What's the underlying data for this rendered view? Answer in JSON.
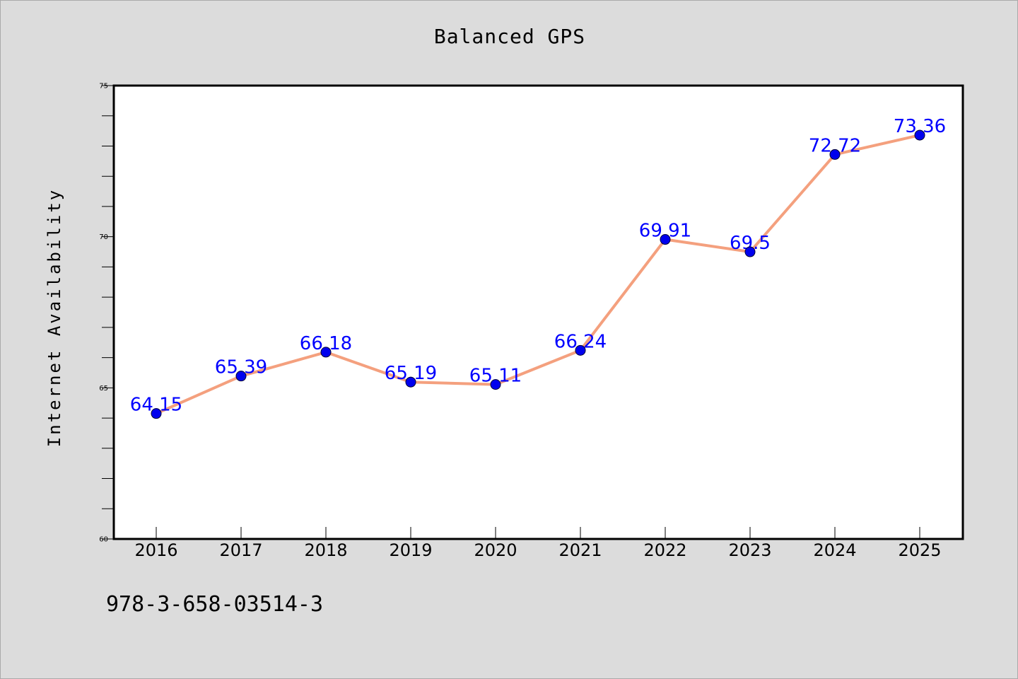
{
  "title": "Balanced GPS",
  "footer_text": "978-3-658-03514-3",
  "chart_data": {
    "type": "line",
    "title": "Balanced GPS",
    "xlabel": "",
    "ylabel": "Internet Availability",
    "categories": [
      "2016",
      "2017",
      "2018",
      "2019",
      "2020",
      "2021",
      "2022",
      "2023",
      "2024",
      "2025"
    ],
    "series": [
      {
        "values": [
          64.15,
          65.39,
          66.18,
          65.19,
          65.11,
          66.24,
          69.91,
          69.5,
          72.72,
          73.36
        ],
        "data_labels": [
          "64.15",
          "65.39",
          "66.18",
          "65.19",
          "65.11",
          "66.24",
          "69.91",
          "69.5",
          "72.72",
          "73.36"
        ]
      }
    ],
    "ylim": [
      60,
      75
    ],
    "yticks": [
      "60",
      "65",
      "70",
      "75"
    ],
    "grid": false,
    "legend": "none",
    "colors": {
      "line": "#f4a07e",
      "marker": "#0000ee",
      "label": "#0000ff",
      "plot_background": "#ffffff",
      "page_background": "#dcdcdc"
    }
  }
}
